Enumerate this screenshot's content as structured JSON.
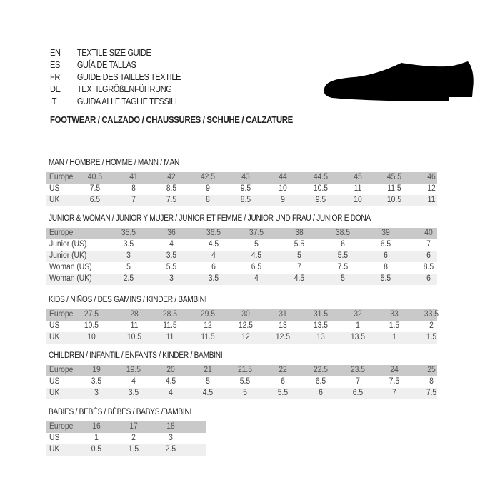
{
  "guide_titles": [
    {
      "code": "EN",
      "title": "TEXTILE SIZE GUIDE"
    },
    {
      "code": "ES",
      "title": "GUÍA DE TALLAS"
    },
    {
      "code": "FR",
      "title": "GUIDE DES TAILLES TEXTILE"
    },
    {
      "code": "DE",
      "title": "TEXTILGRÖßENFÜHRUNG"
    },
    {
      "code": "IT",
      "title": "GUIDA ALLE TAGLIE TESSILI"
    }
  ],
  "footwear_heading": "FOOTWEAR / CALZADO / CHAUSSURES / SCHUHE / CALZATURE",
  "shoe_icon": "dress-shoe-silhouette",
  "colors": {
    "header_row": "#c9c9c9",
    "alt_row": "#efefef"
  },
  "sections": [
    {
      "title": "MAN / HOMBRE / HOMME / MANN / MAN",
      "rows": [
        {
          "label": "Europe",
          "values": [
            "40.5",
            "41",
            "42",
            "42.5",
            "43",
            "44",
            "44.5",
            "45",
            "45.5",
            "46"
          ]
        },
        {
          "label": "US",
          "values": [
            "7.5",
            "8",
            "8.5",
            "9",
            "9.5",
            "10",
            "10.5",
            "11",
            "11.5",
            "12"
          ]
        },
        {
          "label": "UK",
          "values": [
            "6.5",
            "7",
            "7.5",
            "8",
            "8.5",
            "9",
            "9.5",
            "10",
            "10.5",
            "11"
          ]
        }
      ]
    },
    {
      "title": "JUNIOR & WOMAN / JUNIOR Y MUJER / JUNIOR ET FEMME / JUNIOR UND FRAU / JUNIOR E DONA",
      "rows": [
        {
          "label": "Europe",
          "values": [
            "35.5",
            "36",
            "36.5",
            "37.5",
            "38",
            "38.5",
            "39",
            "40"
          ]
        },
        {
          "label": "Junior (US)",
          "values": [
            "3.5",
            "4",
            "4.5",
            "5",
            "5.5",
            "6",
            "6.5",
            "7"
          ]
        },
        {
          "label": "Junior (UK)",
          "values": [
            "3",
            "3.5",
            "4",
            "4.5",
            "5",
            "5.5",
            "6",
            "6"
          ]
        },
        {
          "label": "Woman (US)",
          "values": [
            "5",
            "5.5",
            "6",
            "6.5",
            "7",
            "7.5",
            "8",
            "8.5"
          ]
        },
        {
          "label": "Woman (UK)",
          "values": [
            "2.5",
            "3",
            "3.5",
            "4",
            "4.5",
            "5",
            "5.5",
            "6"
          ]
        }
      ]
    },
    {
      "title": "KIDS / NIÑOS / DES GAMINS / KINDER / BAMBINI",
      "rows": [
        {
          "label": "Europe",
          "values": [
            "27.5",
            "28",
            "28.5",
            "29.5",
            "30",
            "31",
            "31.5",
            "32",
            "33",
            "33.5"
          ]
        },
        {
          "label": "US",
          "values": [
            "10.5",
            "11",
            "11.5",
            "12",
            "12.5",
            "13",
            "13.5",
            "1",
            "1.5",
            "2"
          ]
        },
        {
          "label": "UK",
          "values": [
            "10",
            "10.5",
            "11",
            "11.5",
            "12",
            "12.5",
            "13",
            "13.5",
            "1",
            "1.5"
          ]
        }
      ]
    },
    {
      "title": "CHILDREN / INFANTIL / ENFANTS / KINDER / BAMBINI",
      "rows": [
        {
          "label": "Europe",
          "values": [
            "19",
            "19.5",
            "20",
            "21",
            "21.5",
            "22",
            "22.5",
            "23.5",
            "24",
            "25"
          ]
        },
        {
          "label": "US",
          "values": [
            "3.5",
            "4",
            "4.5",
            "5",
            "5.5",
            "6",
            "6.5",
            "7",
            "7.5",
            "8"
          ]
        },
        {
          "label": "UK",
          "values": [
            "3",
            "3.5",
            "4",
            "4.5",
            "5",
            "5.5",
            "6",
            "6.5",
            "7",
            "7.5"
          ]
        }
      ]
    },
    {
      "title": "BABIES  / BEBÉS / BÉBÉS / BABYS /BAMBINI",
      "rows": [
        {
          "label": "Europe",
          "values": [
            "16",
            "17",
            "18"
          ]
        },
        {
          "label": "US",
          "values": [
            "1",
            "2",
            "3"
          ]
        },
        {
          "label": "UK",
          "values": [
            "0.5",
            "1.5",
            "2.5"
          ]
        }
      ]
    }
  ]
}
